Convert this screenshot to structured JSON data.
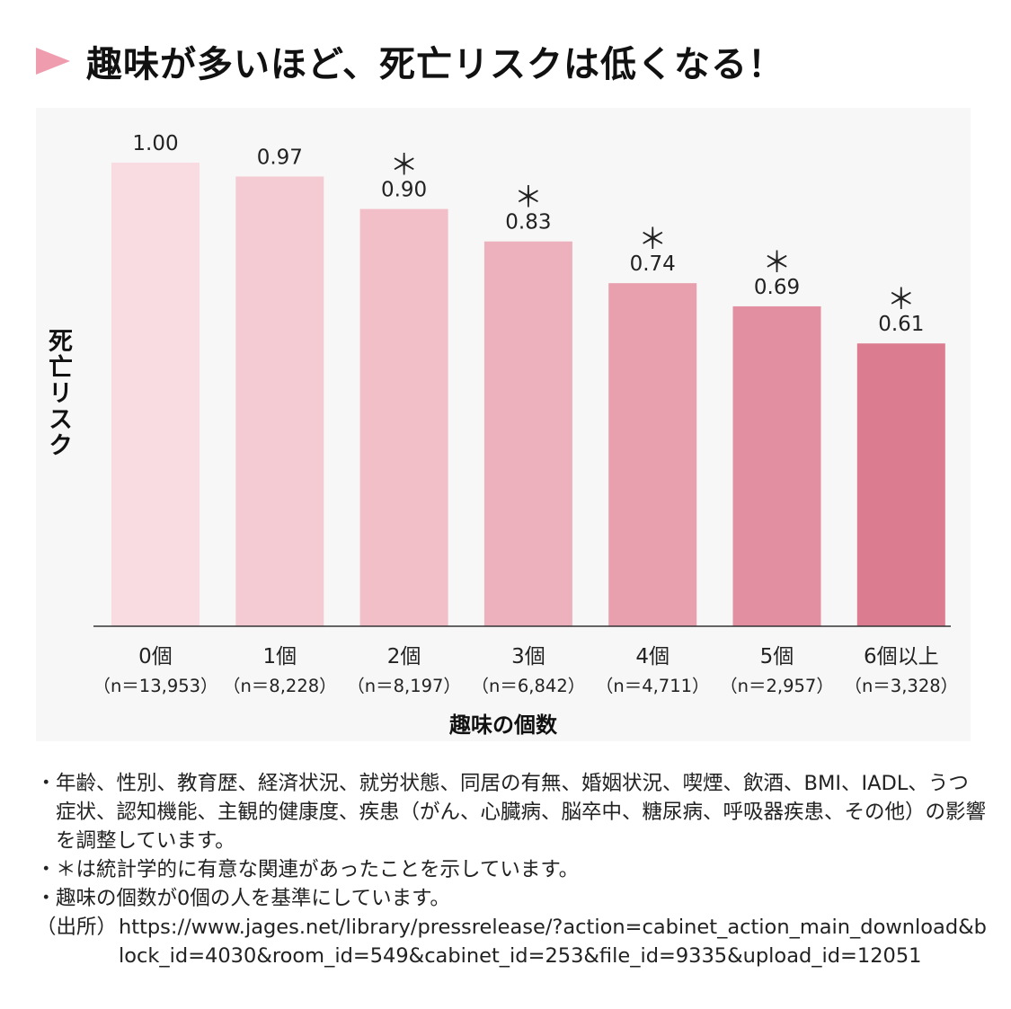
{
  "title": "趣味が多いほど、死亡リスクは低くなる！",
  "colors": {
    "title_arrow": "#ef9cae",
    "bars": [
      "#f8dce2",
      "#f4cbd3",
      "#f2bfc8",
      "#edb1bd",
      "#e8a0ae",
      "#e28fa1",
      "#dc7c90"
    ]
  },
  "chart_data": {
    "type": "bar",
    "title": "趣味が多いほど、死亡リスクは低くなる！",
    "xlabel": "趣味の個数",
    "ylabel": "死亡リスク",
    "ylim": [
      0,
      1.0
    ],
    "grid": false,
    "categories": [
      "0個",
      "1個",
      "2個",
      "3個",
      "4個",
      "5個",
      "6個以上"
    ],
    "sample_sizes": [
      "（n＝13,953）",
      "（n＝8,228）",
      "（n＝8,197）",
      "（n＝6,842）",
      "（n＝4,711）",
      "（n＝2,957）",
      "（n＝3,328）"
    ],
    "values": [
      1.0,
      0.97,
      0.9,
      0.83,
      0.74,
      0.69,
      0.61
    ],
    "value_labels": [
      "1.00",
      "0.97",
      "0.90",
      "0.83",
      "0.74",
      "0.69",
      "0.61"
    ],
    "significant": [
      false,
      false,
      true,
      true,
      true,
      true,
      true
    ],
    "significance_marker": "＊"
  },
  "notes": [
    "年齢、性別、教育歴、経済状況、就労状態、同居の有無、婚姻状況、喫煙、飲酒、BMI、IADL、うつ症状、認知機能、主観的健康度、疾患（がん、心臓病、脳卒中、糖尿病、呼吸器疾患、その他）の影響を調整しています。",
    "＊は統計学的に有意な関連があったことを示しています。",
    "趣味の個数が0個の人を基準にしています。"
  ],
  "note_bullet": "・",
  "source": {
    "label": "（出所）",
    "url": "https://www.jages.net/library/pressrelease/?action=cabinet_action_main_download&block_id=4030&room_id=549&cabinet_id=253&file_id=9335&upload_id=12051"
  }
}
